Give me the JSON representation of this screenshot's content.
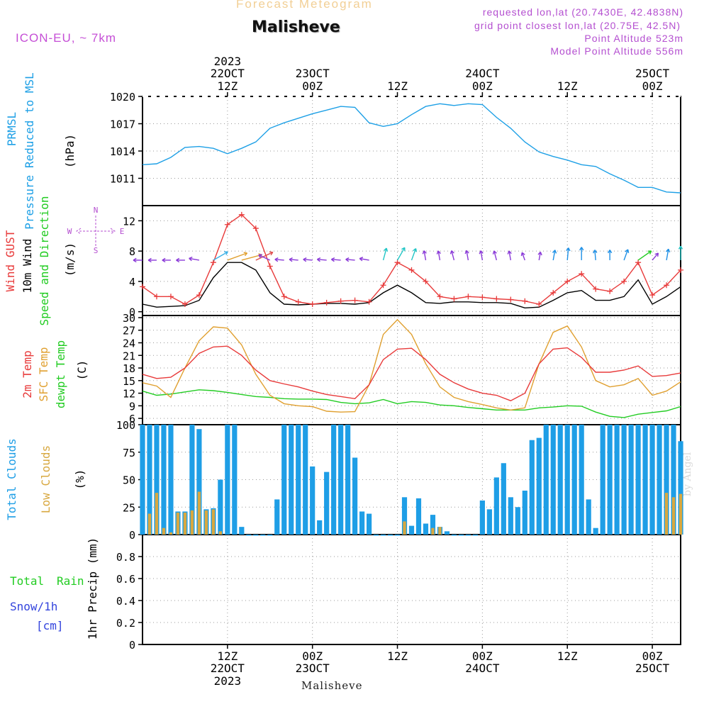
{
  "header": {
    "title": "Forecast Meteogram",
    "location": "Malisheve",
    "model": "ICON-EU, ~ 7km",
    "requested": "requested lon,lat (20.7430E, 42.4838N)",
    "grid_point": "grid point closest lon,lat (20.75E, 42.5N)",
    "point_altitude": "Point Altitude 523m",
    "model_altitude": "Model Point Altitude 556m"
  },
  "footer": {
    "location": "Malisheve",
    "credit": "by Angel"
  },
  "colors": {
    "pressure": "#1ea0e6",
    "gust": "#e83a3a",
    "wind10m": "#000000",
    "temp2m": "#e83a3a",
    "sfc": "#e0a030",
    "dewpt": "#22cc22",
    "total_clouds": "#1e9ee6",
    "low_clouds": "#d8a840",
    "rain": "#22cc22",
    "snow": "#3344dd",
    "label_purple": "#b44fd0"
  },
  "time_axis": {
    "top": [
      {
        "hour": 12,
        "l1": "2023",
        "l2": "22OCT",
        "l3": "12Z"
      },
      {
        "hour": 24,
        "l1": "",
        "l2": "23OCT",
        "l3": "00Z"
      },
      {
        "hour": 36,
        "l1": "",
        "l2": "",
        "l3": "12Z"
      },
      {
        "hour": 48,
        "l1": "",
        "l2": "24OCT",
        "l3": "00Z"
      },
      {
        "hour": 60,
        "l1": "",
        "l2": "",
        "l3": "12Z"
      },
      {
        "hour": 72,
        "l1": "",
        "l2": "25OCT",
        "l3": "00Z"
      }
    ],
    "bottom": [
      {
        "hour": 12,
        "l1": "12Z",
        "l2": "22OCT",
        "l3": "2023"
      },
      {
        "hour": 24,
        "l1": "00Z",
        "l2": "23OCT",
        "l3": ""
      },
      {
        "hour": 36,
        "l1": "12Z",
        "l2": "",
        "l3": ""
      },
      {
        "hour": 48,
        "l1": "00Z",
        "l2": "24OCT",
        "l3": ""
      },
      {
        "hour": 60,
        "l1": "12Z",
        "l2": "",
        "l3": ""
      },
      {
        "hour": 72,
        "l1": "00Z",
        "l2": "25OCT",
        "l3": ""
      }
    ]
  },
  "chart_data": [
    {
      "type": "line",
      "id": "pressure",
      "title": "PRMSL Pressure Reduced to MSL",
      "labels": [
        "PRMSL",
        "Pressure Reduced to MSL"
      ],
      "unit": "(hPa)",
      "ylim": [
        1008,
        1020
      ],
      "yticks": [
        1011,
        1014,
        1017,
        1020
      ],
      "x": [
        0,
        2,
        4,
        6,
        8,
        10,
        12,
        14,
        16,
        18,
        20,
        22,
        24,
        26,
        28,
        30,
        32,
        34,
        36,
        38,
        40,
        42,
        44,
        46,
        48,
        50,
        52,
        54,
        56,
        58,
        60,
        62,
        64,
        66,
        68,
        70,
        72,
        74,
        76
      ],
      "series": [
        {
          "name": "PRMSL",
          "values": [
            1012.5,
            1012.6,
            1013.3,
            1014.4,
            1014.5,
            1014.3,
            1013.7,
            1014.3,
            1015.0,
            1016.5,
            1017.1,
            1017.6,
            1018.1,
            1018.5,
            1018.9,
            1018.8,
            1017.1,
            1016.7,
            1017.0,
            1018.0,
            1018.9,
            1019.2,
            1019.0,
            1019.2,
            1019.1,
            1017.7,
            1016.5,
            1015.0,
            1013.9,
            1013.4,
            1013.0,
            1012.5,
            1012.3,
            1011.5,
            1010.8,
            1010.0,
            1010.0,
            1009.5,
            1009.4
          ]
        }
      ]
    },
    {
      "type": "line",
      "id": "wind",
      "title": "Wind GUST 10m Wind Speed and Direction",
      "labels": [
        "Wind GUST",
        "10m Wind",
        "Speed and Direction"
      ],
      "unit": "(m/s)",
      "compass": {
        "n": "N",
        "s": "S",
        "e": "E",
        "w": "W"
      },
      "ylim": [
        -0.5,
        14
      ],
      "yticks": [
        0,
        4,
        8,
        12
      ],
      "x": [
        0,
        2,
        4,
        6,
        8,
        10,
        12,
        14,
        16,
        18,
        20,
        22,
        24,
        26,
        28,
        30,
        32,
        34,
        36,
        38,
        40,
        42,
        44,
        46,
        48,
        50,
        52,
        54,
        56,
        58,
        60,
        62,
        64,
        66,
        68,
        70,
        72,
        74,
        76
      ],
      "series": [
        {
          "name": "Wind GUST",
          "values": [
            3.3,
            2.0,
            2.0,
            1.0,
            2.2,
            6.5,
            11.5,
            12.8,
            11.0,
            6.0,
            2.0,
            1.3,
            1.0,
            1.2,
            1.4,
            1.5,
            1.3,
            3.5,
            6.5,
            5.5,
            4.0,
            2.0,
            1.7,
            2.0,
            1.9,
            1.7,
            1.6,
            1.4,
            1.0,
            2.5,
            4.0,
            5.0,
            3.0,
            2.7,
            4.0,
            6.5,
            2.2,
            3.5,
            5.5
          ]
        },
        {
          "name": "10m Wind",
          "values": [
            1.0,
            0.6,
            0.7,
            0.8,
            1.5,
            4.5,
            6.5,
            6.5,
            5.5,
            2.5,
            1.0,
            0.9,
            1.0,
            1.1,
            1.1,
            1.0,
            1.2,
            2.5,
            3.5,
            2.5,
            1.2,
            1.1,
            1.3,
            1.3,
            1.2,
            1.2,
            1.1,
            0.5,
            0.6,
            1.5,
            2.5,
            2.8,
            1.5,
            1.5,
            2.0,
            4.2,
            1.0,
            2.0,
            3.3
          ]
        }
      ],
      "barbs": {
        "x": [
          0,
          2,
          4,
          6,
          8,
          10,
          12,
          14,
          16,
          18,
          20,
          22,
          24,
          26,
          28,
          30,
          32,
          34,
          36,
          38,
          40,
          42,
          44,
          46,
          48,
          50,
          52,
          54,
          56,
          58,
          60,
          62,
          64,
          66,
          68,
          70,
          72,
          74,
          76
        ],
        "dir": [
          -180,
          -180,
          -180,
          -180,
          -170,
          -30,
          -20,
          -15,
          -25,
          -155,
          -175,
          -175,
          -175,
          -175,
          -175,
          -175,
          -170,
          -75,
          -60,
          -70,
          -100,
          -100,
          -105,
          -100,
          -100,
          -105,
          -100,
          -110,
          -80,
          -80,
          -85,
          -90,
          -95,
          -90,
          -70,
          -35,
          -50,
          -80,
          -90
        ],
        "color": [
          "#8a3ad8",
          "#8a3ad8",
          "#8a3ad8",
          "#8a3ad8",
          "#8a3ad8",
          "#3ab0e6",
          "#e0a030",
          "#e0a030",
          "#e05050",
          "#8a3ad8",
          "#8a3ad8",
          "#8a3ad8",
          "#8a3ad8",
          "#8a3ad8",
          "#8a3ad8",
          "#8a3ad8",
          "#8a3ad8",
          "#22c6c6",
          "#22c6c6",
          "#22c6c6",
          "#8a3ad8",
          "#8a3ad8",
          "#8a3ad8",
          "#8a3ad8",
          "#8a3ad8",
          "#8a3ad8",
          "#8a3ad8",
          "#8a3ad8",
          "#8a3ad8",
          "#1e90e6",
          "#1e90e6",
          "#1e90e6",
          "#1e90e6",
          "#1e90e6",
          "#1e90e6",
          "#22cc22",
          "#8a3ad8",
          "#1e90e6",
          "#22c6c6"
        ]
      }
    },
    {
      "type": "line",
      "id": "temperature",
      "title": "2m Temp SFC Temp dewpt Temp",
      "labels": [
        "2m Temp",
        "SFC Temp",
        "dewpt Temp"
      ],
      "unit": "(C)",
      "ylim": [
        4.5,
        30.5
      ],
      "yticks": [
        6,
        9,
        12,
        15,
        18,
        21,
        24,
        27,
        30
      ],
      "x": [
        0,
        2,
        4,
        6,
        8,
        10,
        12,
        14,
        16,
        18,
        20,
        22,
        24,
        26,
        28,
        30,
        32,
        34,
        36,
        38,
        40,
        42,
        44,
        46,
        48,
        50,
        52,
        54,
        56,
        58,
        60,
        62,
        64,
        66,
        68,
        70,
        72,
        74,
        76
      ],
      "series": [
        {
          "name": "2m Temp",
          "values": [
            16.5,
            15.5,
            15.8,
            18,
            21.5,
            23,
            23.2,
            21,
            17.5,
            15,
            14.2,
            13.5,
            12.5,
            11.7,
            11.2,
            10.7,
            14,
            20,
            22.5,
            22.7,
            20,
            16.5,
            14.5,
            13,
            12,
            11.5,
            10.2,
            12,
            19,
            22.5,
            22.8,
            20.5,
            17,
            17,
            17.5,
            18.5,
            16,
            16.2,
            16.8
          ]
        },
        {
          "name": "SFC Temp",
          "values": [
            14.5,
            13.7,
            11,
            18,
            24.5,
            27.8,
            27.5,
            23.5,
            16.5,
            11.5,
            9.5,
            9,
            8.8,
            7.7,
            7.5,
            7.6,
            14,
            26,
            29.5,
            26,
            19,
            13.5,
            11,
            10,
            9.3,
            8.5,
            8,
            8.5,
            19,
            26.5,
            28,
            23,
            15,
            13.5,
            14,
            15.5,
            11.5,
            12.5,
            14.7
          ]
        },
        {
          "name": "dewpt Temp",
          "values": [
            12.5,
            11.5,
            11.8,
            12.3,
            12.8,
            12.6,
            12.2,
            11.7,
            11.2,
            11,
            10.7,
            10.6,
            10.6,
            10.5,
            9.8,
            9.5,
            9.7,
            10.5,
            9.5,
            10,
            9.8,
            9.2,
            9.0,
            8.6,
            8.3,
            8.0,
            8.0,
            8.0,
            8.5,
            8.7,
            9.0,
            8.9,
            7.5,
            6.5,
            6.2,
            7.0,
            7.4,
            7.8,
            8.8
          ]
        }
      ]
    },
    {
      "type": "bar",
      "id": "clouds",
      "title": "Total Clouds Low Clouds",
      "labels": [
        "Total Clouds",
        "Low Clouds"
      ],
      "unit": "(%)",
      "ylim": [
        0,
        100
      ],
      "yticks": [
        0,
        25,
        50,
        75,
        100
      ],
      "x": [
        0,
        1,
        2,
        3,
        4,
        5,
        6,
        7,
        8,
        9,
        10,
        11,
        12,
        13,
        14,
        15,
        16,
        17,
        18,
        19,
        20,
        21,
        22,
        23,
        24,
        25,
        26,
        27,
        28,
        29,
        30,
        31,
        32,
        33,
        34,
        35,
        36,
        37,
        38,
        39,
        40,
        41,
        42,
        43,
        44,
        45,
        46,
        47,
        48,
        49,
        50,
        51,
        52,
        53,
        54,
        55,
        56,
        57,
        58,
        59,
        60,
        61,
        62,
        63,
        64,
        65,
        66,
        67,
        68,
        69,
        70,
        71,
        72,
        73,
        74,
        75,
        76
      ],
      "series": [
        {
          "name": "Total Clouds",
          "values": [
            100,
            100,
            100,
            100,
            100,
            21,
            21,
            100,
            96,
            23,
            24,
            50,
            100,
            100,
            7,
            0,
            0,
            0,
            0,
            32,
            100,
            100,
            100,
            100,
            62,
            13,
            57,
            100,
            100,
            100,
            70,
            21,
            19,
            0,
            0,
            0,
            0,
            34,
            8,
            33,
            10,
            18,
            7,
            3,
            0,
            0,
            0,
            0,
            31,
            23,
            52,
            65,
            34,
            25,
            40,
            86,
            88,
            100,
            100,
            100,
            100,
            100,
            100,
            32,
            6,
            100,
            100,
            100,
            100,
            100,
            100,
            100,
            100,
            100,
            100,
            100,
            85
          ]
        },
        {
          "name": "Low Clouds",
          "values": [
            0,
            19,
            38,
            6,
            2,
            20,
            20,
            22,
            39,
            22,
            23,
            3,
            0,
            0,
            0,
            0,
            0,
            0,
            0,
            0,
            0,
            0,
            0,
            0,
            0,
            0,
            0,
            0,
            0,
            0,
            0,
            0,
            0,
            0,
            0,
            0,
            0,
            12,
            0,
            0,
            0,
            6,
            7,
            0,
            0,
            0,
            0,
            0,
            0,
            0,
            0,
            0,
            0,
            0,
            0,
            0,
            0,
            0,
            0,
            0,
            0,
            0,
            0,
            0,
            0,
            0,
            0,
            0,
            0,
            0,
            0,
            0,
            0,
            0,
            38,
            34,
            37
          ]
        }
      ]
    },
    {
      "type": "bar",
      "id": "precip",
      "title": "1hr Precip",
      "labels": [
        "Total",
        "Rain",
        "Snow/1h",
        "[cm]"
      ],
      "unit": "1hr Precip (mm)",
      "ylim": [
        0,
        1
      ],
      "yticks": [
        0,
        0.2,
        0.4,
        0.6,
        0.8
      ],
      "x": [
        0,
        76
      ],
      "series": [
        {
          "name": "Total Rain",
          "values": [
            0,
            0
          ]
        }
      ]
    }
  ]
}
